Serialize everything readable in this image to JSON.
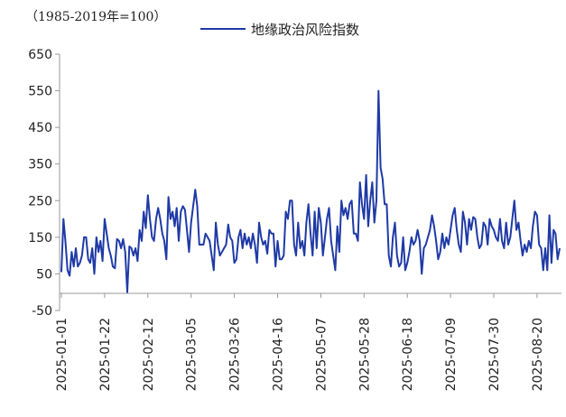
{
  "chart_data": {
    "type": "line",
    "unit_label": "（1985-2019年=100）",
    "title": "",
    "xlabel": "",
    "ylabel": "",
    "ylim": [
      -50,
      650
    ],
    "y_ticks": [
      650,
      550,
      450,
      350,
      250,
      150,
      50,
      -50
    ],
    "x_ticks": [
      "2025-01-01",
      "2025-01-22",
      "2025-02-12",
      "2025-03-05",
      "2025-03-26",
      "2025-04-16",
      "2025-05-07",
      "2025-05-28",
      "2025-06-18",
      "2025-07-09",
      "2025-07-30",
      "2025-08-20"
    ],
    "x_start": "2025-01-01",
    "legend_position": "top-center",
    "grid": false,
    "line_color": "#1f3aa6",
    "series": [
      {
        "name": "地缘政治风险指数",
        "values": [
          55,
          200,
          135,
          60,
          45,
          110,
          70,
          120,
          70,
          80,
          100,
          150,
          150,
          90,
          80,
          120,
          50,
          150,
          110,
          140,
          85,
          200,
          160,
          120,
          100,
          70,
          65,
          145,
          140,
          120,
          145,
          110,
          0,
          125,
          120,
          100,
          120,
          85,
          170,
          140,
          220,
          175,
          265,
          200,
          150,
          140,
          200,
          230,
          200,
          160,
          140,
          90,
          260,
          200,
          220,
          180,
          230,
          140,
          220,
          235,
          225,
          170,
          110,
          190,
          235,
          280,
          235,
          130,
          130,
          130,
          160,
          150,
          140,
          100,
          60,
          190,
          130,
          100,
          110,
          120,
          130,
          185,
          150,
          140,
          80,
          90,
          150,
          170,
          120,
          160,
          130,
          150,
          120,
          160,
          130,
          80,
          190,
          150,
          130,
          140,
          105,
          170,
          160,
          160,
          70,
          140,
          90,
          90,
          100,
          220,
          200,
          250,
          250,
          130,
          100,
          190,
          120,
          140,
          100,
          190,
          240,
          160,
          100,
          220,
          120,
          230,
          190,
          100,
          150,
          200,
          230,
          140,
          100,
          60,
          180,
          110,
          250,
          210,
          230,
          200,
          240,
          250,
          160,
          160,
          140,
          300,
          240,
          200,
          320,
          180,
          250,
          300,
          190,
          250,
          550,
          340,
          310,
          240,
          240,
          100,
          70,
          150,
          190,
          100,
          70,
          80,
          150,
          60,
          80,
          110,
          150,
          130,
          140,
          170,
          140,
          50,
          120,
          130,
          150,
          170,
          210,
          180,
          140,
          90,
          110,
          160,
          120,
          150,
          130,
          170,
          210,
          230,
          170,
          130,
          110,
          220,
          190,
          130,
          200,
          170,
          205,
          200,
          150,
          120,
          130,
          190,
          180,
          130,
          200,
          180,
          170,
          150,
          140,
          200,
          140,
          120,
          190,
          130,
          150,
          200,
          250,
          170,
          190,
          140,
          100,
          130,
          110,
          140,
          120,
          180,
          220,
          210,
          130,
          120,
          60,
          120,
          60,
          210,
          80,
          170,
          160,
          90,
          120
        ]
      }
    ]
  }
}
